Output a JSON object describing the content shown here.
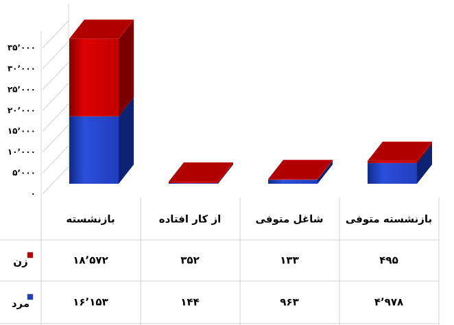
{
  "chart_data": {
    "type": "bar3d_stacked",
    "categories": [
      "بازنشسته",
      "از کار افتاده",
      "شاغل متوفی",
      "بازنشسته متوفی"
    ],
    "series": [
      {
        "name": "زن",
        "color": "#c00000",
        "values": [
          18572,
          352,
          133,
          495
        ],
        "value_labels": [
          "۱۸٬۵۷۲",
          "۳۵۲",
          "۱۳۳",
          "۴۹۵"
        ]
      },
      {
        "name": "مرد",
        "color": "#1f3fbf",
        "values": [
          16153,
          144,
          963,
          4978
        ],
        "value_labels": [
          "۱۶٬۱۵۳",
          "۱۴۴",
          "۹۶۳",
          "۴٬۹۷۸"
        ]
      }
    ],
    "ylim": [
      0,
      35000
    ],
    "yticks": [
      {
        "value": 0,
        "label": "۰"
      },
      {
        "value": 5000,
        "label": "۵٬۰۰۰"
      },
      {
        "value": 10000,
        "label": "۱۰٬۰۰۰"
      },
      {
        "value": 15000,
        "label": "۱۵٬۰۰۰"
      },
      {
        "value": 20000,
        "label": "۲۰٬۰۰۰"
      },
      {
        "value": 25000,
        "label": "۲۵٬۰۰۰"
      },
      {
        "value": 30000,
        "label": "۳۰٬۰۰۰"
      },
      {
        "value": 35000,
        "label": "۳۵٬۰۰۰"
      }
    ],
    "grid": true
  }
}
